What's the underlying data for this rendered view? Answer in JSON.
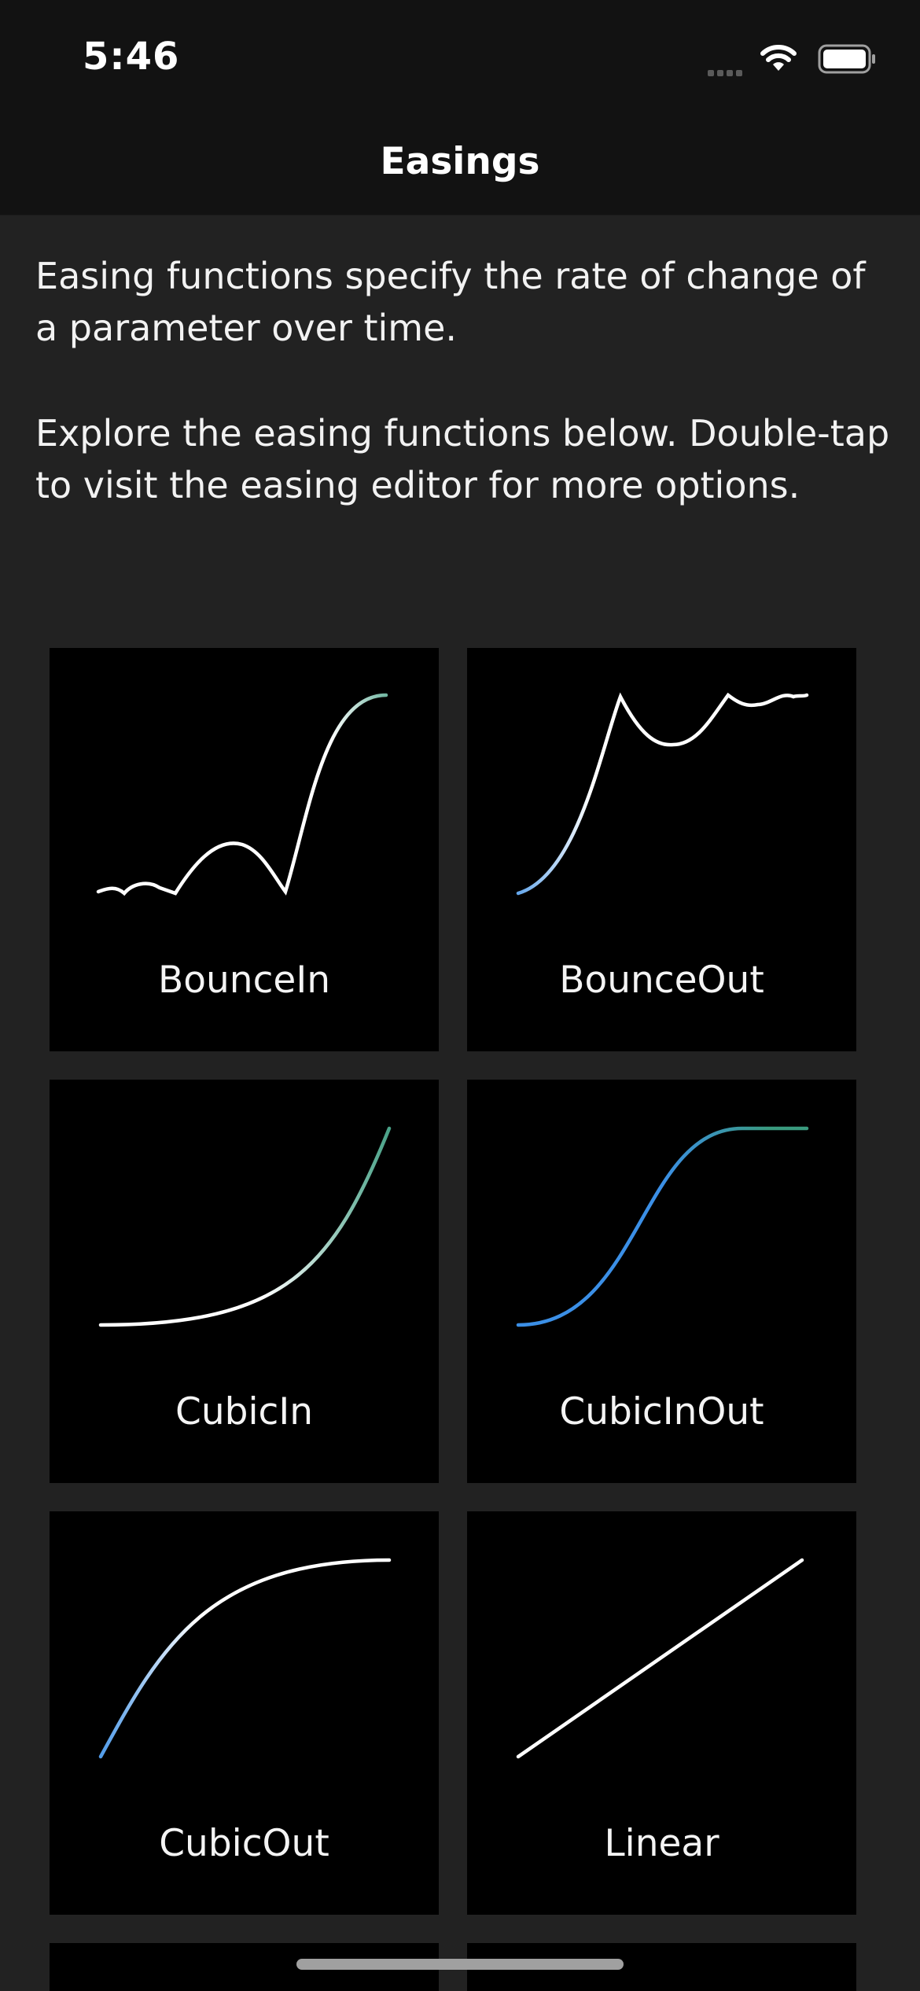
{
  "status_bar": {
    "time": "5:46"
  },
  "nav": {
    "title": "Easings"
  },
  "intro": {
    "paragraph1": "Easing functions specify the rate of change of a parameter over time.",
    "paragraph2": "Explore the easing functions below. Double-tap to visit the easing editor for more options."
  },
  "colors": {
    "accent_blue": "#3b8fe6",
    "accent_green": "#3a9a7e",
    "curve": "#ffffff",
    "tile_bg": "#000000"
  },
  "tiles": [
    {
      "label": "BounceIn"
    },
    {
      "label": "BounceOut"
    },
    {
      "label": "CubicIn"
    },
    {
      "label": "CubicInOut"
    },
    {
      "label": "CubicOut"
    },
    {
      "label": "Linear"
    }
  ]
}
